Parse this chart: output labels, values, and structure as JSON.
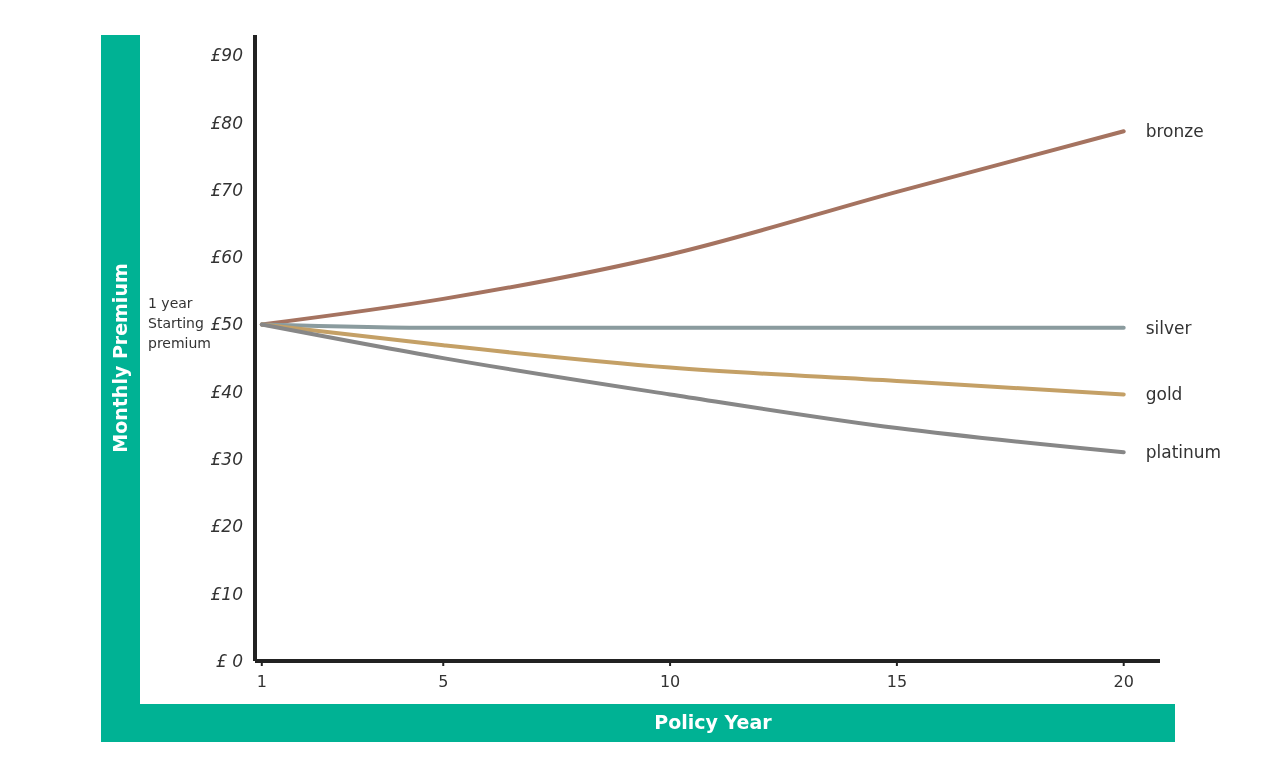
{
  "chart_data": {
    "type": "line",
    "xlabel": "Policy Year",
    "ylabel": "Monthly Premium",
    "x": [
      1,
      5,
      10,
      15,
      20
    ],
    "xlim": [
      0.85,
      20.8
    ],
    "xticks": [
      1,
      5,
      10,
      15,
      20
    ],
    "ylim": [
      0,
      93
    ],
    "yticks": [
      {
        "value": 0,
        "label": "£ 0"
      },
      {
        "value": 10,
        "label": "£10"
      },
      {
        "value": 20,
        "label": "£20"
      },
      {
        "value": 30,
        "label": "£30"
      },
      {
        "value": 40,
        "label": "£40"
      },
      {
        "value": 50,
        "label": "£50"
      },
      {
        "value": 60,
        "label": "£60"
      },
      {
        "value": 70,
        "label": "£70"
      },
      {
        "value": 80,
        "label": "£80"
      },
      {
        "value": 90,
        "label": "£90"
      }
    ],
    "series": [
      {
        "name": "bronze",
        "color": "#a57360",
        "values": [
          50,
          53.8,
          60.4,
          69.7,
          78.7
        ]
      },
      {
        "name": "silver",
        "color": "#8a9b9e",
        "values": [
          50,
          49.5,
          49.5,
          49.5,
          49.5
        ]
      },
      {
        "name": "gold",
        "color": "#c4a066",
        "values": [
          50,
          46.9,
          43.6,
          41.6,
          39.6
        ]
      },
      {
        "name": "platinum",
        "color": "#878787",
        "values": [
          50,
          45,
          39.6,
          34.6,
          31
        ]
      }
    ],
    "annotations": [
      "1 year\nStarting\npremium"
    ],
    "grid": false
  }
}
